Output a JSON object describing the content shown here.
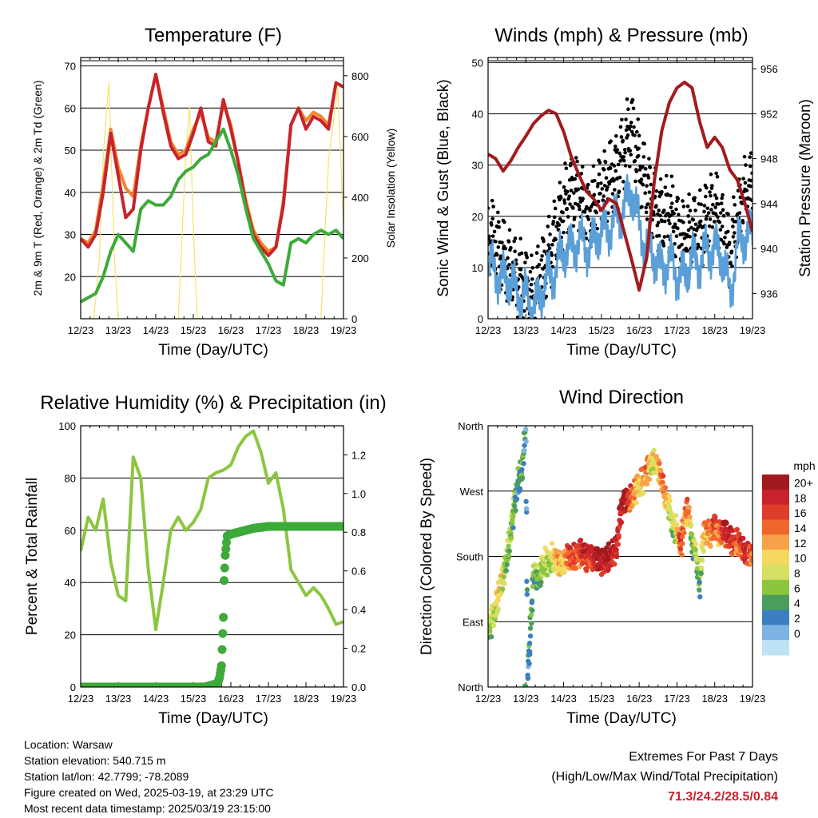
{
  "x_ticks": [
    "12/23",
    "13/23",
    "14/23",
    "15/23",
    "16/23",
    "17/23",
    "18/23",
    "19/23"
  ],
  "chart_data": [
    {
      "type": "line",
      "title": "Temperature (F)",
      "xlabel": "Time (Day/UTC)",
      "ylabel": "2m & 9m T (Red, Orange) & 2m Td (Green)",
      "y2label": "Solar Insolation (Yellow)",
      "ylim": [
        10,
        72
      ],
      "y2lim": [
        0,
        860
      ],
      "yticks": [
        20,
        30,
        40,
        50,
        60,
        70
      ],
      "y2ticks": [
        0,
        200,
        400,
        600,
        800
      ],
      "xlim": [
        0,
        7
      ],
      "series": [
        {
          "color": "#f7e26b",
          "axis": "y2",
          "x": [
            0.0,
            0.1,
            0.25,
            0.35,
            0.5,
            0.6,
            0.75,
            0.9,
            1.0,
            1.2,
            1.4,
            1.6,
            1.75,
            1.95,
            2.15,
            2.4,
            2.6,
            2.8,
            2.9,
            3.0,
            3.1,
            3.2,
            3.3,
            3.45,
            3.6,
            3.75,
            3.85,
            4.0,
            4.2,
            4.4,
            4.6,
            4.8,
            4.95,
            5.2,
            5.4,
            5.6,
            5.75,
            5.95,
            6.15,
            6.4,
            6.6,
            6.85,
            7.0
          ],
          "values": [
            0,
            0,
            0,
            0,
            200,
            540,
            780,
            200,
            0,
            0,
            0,
            0,
            0,
            0,
            0,
            0,
            0,
            540,
            700,
            300,
            0,
            0,
            0,
            0,
            0,
            0,
            0,
            0,
            0,
            0,
            0,
            0,
            0,
            0,
            0,
            0,
            0,
            0,
            0,
            0,
            520,
            760,
            300
          ]
        },
        {
          "color": "#f0862a",
          "axis": "y",
          "x": [
            0,
            0.2,
            0.4,
            0.6,
            0.8,
            1.0,
            1.2,
            1.4,
            1.6,
            1.8,
            2.0,
            2.2,
            2.4,
            2.6,
            2.8,
            3.0,
            3.2,
            3.4,
            3.6,
            3.8,
            4.0,
            4.2,
            4.4,
            4.6,
            4.8,
            5.0,
            5.2,
            5.4,
            5.6,
            5.8,
            6.0,
            6.2,
            6.4,
            6.6,
            6.8,
            7.0
          ],
          "values": [
            29,
            28,
            31,
            42,
            55,
            46,
            41,
            39,
            51,
            60,
            68,
            60,
            52,
            49,
            50,
            55,
            59,
            53,
            52,
            61,
            56,
            47,
            38,
            31,
            28,
            26,
            27,
            38,
            56,
            60,
            57,
            59,
            58,
            56,
            66,
            65
          ]
        },
        {
          "color": "#c8232c",
          "axis": "y",
          "x": [
            0,
            0.2,
            0.4,
            0.6,
            0.8,
            1.0,
            1.2,
            1.4,
            1.6,
            1.8,
            2.0,
            2.2,
            2.4,
            2.6,
            2.8,
            3.0,
            3.2,
            3.4,
            3.6,
            3.8,
            4.0,
            4.2,
            4.4,
            4.6,
            4.8,
            5.0,
            5.2,
            5.4,
            5.6,
            5.8,
            6.0,
            6.2,
            6.4,
            6.6,
            6.8,
            7.0
          ],
          "values": [
            29,
            27,
            30,
            40,
            54,
            44,
            34,
            36,
            50,
            60,
            68,
            59,
            51,
            48,
            49,
            54,
            60,
            52,
            51,
            62,
            55,
            47,
            37,
            30,
            27,
            25,
            27,
            37,
            56,
            60,
            55,
            58,
            57,
            55,
            66,
            65
          ]
        },
        {
          "color": "#3daa3a",
          "axis": "y",
          "x": [
            0,
            0.2,
            0.4,
            0.6,
            0.8,
            1.0,
            1.2,
            1.4,
            1.6,
            1.8,
            2.0,
            2.2,
            2.4,
            2.6,
            2.8,
            3.0,
            3.2,
            3.4,
            3.6,
            3.8,
            4.0,
            4.2,
            4.4,
            4.6,
            4.8,
            5.0,
            5.2,
            5.4,
            5.6,
            5.8,
            6.0,
            6.2,
            6.4,
            6.6,
            6.8,
            7.0
          ],
          "values": [
            14,
            15,
            16,
            20,
            26,
            30,
            28,
            26,
            36,
            38,
            37,
            37,
            39,
            43,
            45,
            46,
            48,
            49,
            52,
            55,
            50,
            44,
            36,
            29,
            26,
            23,
            19,
            18,
            28,
            29,
            28,
            30,
            31,
            30,
            31,
            29
          ]
        }
      ]
    },
    {
      "type": "line",
      "title": "Winds (mph) & Pressure (mb)",
      "xlabel": "Time (Day/UTC)",
      "ylabel": "Sonic Wind & Gust (Blue, Black)",
      "y2label": "Station Pressure (Maroon)",
      "ylim": [
        0,
        51
      ],
      "y2lim": [
        933.75,
        957
      ],
      "yticks": [
        0,
        10,
        20,
        30,
        40,
        50
      ],
      "y2ticks": [
        936,
        940,
        944,
        948,
        952,
        956
      ],
      "xlim": [
        0,
        7
      ],
      "series": [
        {
          "color": "#000000",
          "axis": "y",
          "style": "dots",
          "x": [
            0,
            0.2,
            0.4,
            0.6,
            0.8,
            1.0,
            1.2,
            1.4,
            1.6,
            1.8,
            2.0,
            2.2,
            2.4,
            2.6,
            2.8,
            3.0,
            3.2,
            3.4,
            3.6,
            3.8,
            4.0,
            4.2,
            4.4,
            4.6,
            4.8,
            5.0,
            5.2,
            5.4,
            5.6,
            5.8,
            6.0,
            6.2,
            6.4,
            6.6,
            6.8,
            7.0
          ],
          "values": [
            17,
            15,
            12,
            10,
            8,
            7,
            4,
            9,
            12,
            17,
            22,
            25,
            24,
            20,
            22,
            25,
            27,
            29,
            33,
            38,
            30,
            26,
            22,
            20,
            21,
            18,
            15,
            18,
            17,
            20,
            22,
            18,
            12,
            20,
            24,
            26
          ]
        },
        {
          "color": "#5a9fd8",
          "axis": "y",
          "x": [
            0,
            0.2,
            0.4,
            0.6,
            0.8,
            1.0,
            1.2,
            1.4,
            1.6,
            1.8,
            2.0,
            2.2,
            2.4,
            2.6,
            2.8,
            3.0,
            3.2,
            3.4,
            3.6,
            3.8,
            4.0,
            4.2,
            4.4,
            4.6,
            4.8,
            5.0,
            5.2,
            5.4,
            5.6,
            5.8,
            6.0,
            6.2,
            6.4,
            6.6,
            6.8,
            7.0
          ],
          "values": [
            10,
            9,
            8,
            7,
            5,
            4,
            2,
            5,
            8,
            10,
            13,
            14,
            15,
            14,
            15,
            17,
            18,
            19,
            22,
            25,
            18,
            14,
            12,
            10,
            11,
            9,
            8,
            12,
            11,
            13,
            14,
            12,
            5,
            14,
            16,
            17
          ]
        },
        {
          "color": "#a31a1e",
          "axis": "y2",
          "x": [
            0,
            0.2,
            0.4,
            0.6,
            0.8,
            1.0,
            1.2,
            1.4,
            1.6,
            1.8,
            2.0,
            2.2,
            2.4,
            2.6,
            2.8,
            3.0,
            3.2,
            3.4,
            3.6,
            3.8,
            4.0,
            4.2,
            4.4,
            4.6,
            4.8,
            5.0,
            5.2,
            5.4,
            5.6,
            5.8,
            6.0,
            6.2,
            6.4,
            6.6,
            6.8,
            7.0
          ],
          "values": [
            948.4,
            948.0,
            946.9,
            947.8,
            949.0,
            950.0,
            951.1,
            951.8,
            952.3,
            952.0,
            950.4,
            948.2,
            946.6,
            945.1,
            944.4,
            943.4,
            944.4,
            944.0,
            941.5,
            939.0,
            936.3,
            939.2,
            946.0,
            950.5,
            953.0,
            954.3,
            954.8,
            954.3,
            951.3,
            949.0,
            949.9,
            949.0,
            947.0,
            946.1,
            944.0,
            941.5
          ]
        }
      ]
    },
    {
      "type": "line",
      "title": "Relative Humidity (%) & Precipitation (in)",
      "xlabel": "Time (Day/UTC)",
      "ylabel": "Percent & Total Rainfall",
      "ylim": [
        0,
        100
      ],
      "y2lim": [
        0,
        1.35
      ],
      "yticks": [
        0,
        20,
        40,
        60,
        80,
        100
      ],
      "y2ticks": [
        0.0,
        0.2,
        0.4,
        0.6,
        0.8,
        1.0,
        1.2
      ],
      "xlim": [
        0,
        7
      ],
      "series": [
        {
          "color": "#8cc63f",
          "axis": "y",
          "x": [
            0,
            0.2,
            0.4,
            0.6,
            0.8,
            1.0,
            1.2,
            1.4,
            1.6,
            1.8,
            2.0,
            2.2,
            2.4,
            2.6,
            2.8,
            3.0,
            3.2,
            3.4,
            3.6,
            3.8,
            4.0,
            4.2,
            4.4,
            4.6,
            4.8,
            5.0,
            5.2,
            5.4,
            5.6,
            5.8,
            6.0,
            6.2,
            6.4,
            6.6,
            6.8,
            7.0
          ],
          "values": [
            52,
            65,
            60,
            72,
            48,
            35,
            33,
            88,
            80,
            45,
            22,
            40,
            60,
            65,
            60,
            63,
            68,
            80,
            82,
            83,
            85,
            92,
            96,
            98,
            90,
            78,
            82,
            68,
            45,
            40,
            35,
            38,
            35,
            30,
            24,
            25
          ]
        },
        {
          "color": "#3daa3a",
          "axis": "y2",
          "style": "markers",
          "x": [
            0,
            0.5,
            1.0,
            1.5,
            2.0,
            2.5,
            3.0,
            3.3,
            3.5,
            3.65,
            3.7,
            3.75,
            3.8,
            3.82,
            3.85,
            3.9,
            4.0,
            4.2,
            4.6,
            5.0,
            5.5,
            6.0,
            6.5,
            7.0
          ],
          "values": [
            0,
            0,
            0,
            0,
            0,
            0,
            0,
            0,
            0.01,
            0.02,
            0.05,
            0.11,
            0.36,
            0.55,
            0.68,
            0.78,
            0.79,
            0.8,
            0.82,
            0.83,
            0.83,
            0.83,
            0.83,
            0.83
          ]
        }
      ]
    },
    {
      "type": "scatter",
      "title": "Wind Direction",
      "xlabel": "Time (Day/UTC)",
      "ylabel": "Direction (Colored By Speed)",
      "ylim": [
        0,
        360
      ],
      "ytick_values": [
        0,
        90,
        180,
        270,
        360
      ],
      "ytick_labels": [
        "North",
        "East",
        "South",
        "West",
        "North"
      ],
      "xlim": [
        0,
        7
      ],
      "colorbar_title": "mph",
      "colorbar_labels": [
        "20+",
        "18",
        "16",
        "14",
        "12",
        "10",
        "8",
        "6",
        "4",
        "2",
        "0"
      ],
      "colorbar_colors": [
        "#a11b1e",
        "#c8232c",
        "#de3d2b",
        "#f0672e",
        "#f7a249",
        "#f5d95e",
        "#d3e063",
        "#8cc63f",
        "#4a9e5c",
        "#3b7fc0",
        "#7db3e3",
        "#bfe2f5"
      ],
      "series": [
        {
          "name": "wind direction",
          "x": [
            0.0,
            0.1,
            0.2,
            0.3,
            0.4,
            0.5,
            0.6,
            0.7,
            0.8,
            0.9,
            1.0,
            1.05,
            1.1,
            1.2,
            1.3,
            1.4,
            1.5,
            1.6,
            1.7,
            1.8,
            1.9,
            2.0,
            2.1,
            2.2,
            2.3,
            2.4,
            2.5,
            2.6,
            2.7,
            2.8,
            2.9,
            3.0,
            3.1,
            3.2,
            3.3,
            3.4,
            3.5,
            3.6,
            3.7,
            3.8,
            3.9,
            4.0,
            4.1,
            4.2,
            4.3,
            4.4,
            4.5,
            4.6,
            4.7,
            4.8,
            4.9,
            5.0,
            5.1,
            5.2,
            5.3,
            5.4,
            5.5,
            5.6,
            5.7,
            5.8,
            5.9,
            6.0,
            6.1,
            6.2,
            6.3,
            6.4,
            6.5,
            6.6,
            6.7,
            6.8,
            6.9,
            7.0
          ],
          "values": [
            75,
            90,
            110,
            135,
            150,
            180,
            215,
            250,
            285,
            300,
            355,
            20,
            60,
            160,
            145,
            160,
            175,
            170,
            180,
            175,
            168,
            172,
            180,
            178,
            180,
            182,
            186,
            178,
            180,
            175,
            178,
            170,
            176,
            180,
            185,
            190,
            240,
            255,
            258,
            262,
            270,
            278,
            285,
            295,
            305,
            312,
            300,
            285,
            260,
            245,
            215,
            220,
            190,
            230,
            250,
            195,
            185,
            140,
            205,
            215,
            210,
            222,
            210,
            215,
            210,
            205,
            198,
            200,
            195,
            186,
            182,
            180
          ],
          "speeds": [
            6,
            7,
            9,
            10,
            8,
            7,
            6,
            5,
            3,
            4,
            2,
            2,
            3,
            6,
            5,
            6,
            8,
            7,
            9,
            10,
            12,
            10,
            14,
            16,
            16,
            14,
            18,
            17,
            16,
            18,
            20,
            18,
            19,
            20,
            18,
            18,
            18,
            20,
            18,
            14,
            12,
            10,
            12,
            14,
            10,
            8,
            10,
            14,
            12,
            8,
            6,
            10,
            16,
            12,
            14,
            4,
            8,
            4,
            10,
            14,
            12,
            16,
            12,
            16,
            18,
            18,
            16,
            14,
            16,
            18,
            16,
            14
          ]
        }
      ]
    }
  ],
  "footer": {
    "location": "Location: Warsaw",
    "elevation": "Station elevation: 540.715 m",
    "latlon": "Station lat/lon: 42.7799; -78.2089",
    "created": "Figure created on Wed, 2025-03-19, at 23:29 UTC",
    "recent": "Most recent data timestamp: 2025/03/19 23:15:00"
  },
  "extremes": {
    "title": "Extremes For Past 7 Days",
    "subtitle": "(High/Low/Max Wind/Total Precipitation)",
    "values": "71.3/24.2/28.5/0.84"
  }
}
